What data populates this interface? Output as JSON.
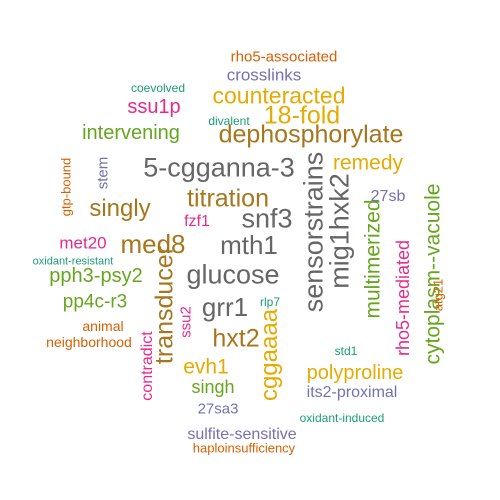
{
  "colors": {
    "green": "#1b9e77",
    "orange": "#d95f02",
    "purple": "#7570b3",
    "magenta": "#e7298a",
    "lime": "#66a61e",
    "gold": "#e6ab02",
    "brown": "#a6761d",
    "grey": "#666666"
  },
  "words": [
    {
      "text": "rho5-associated",
      "color": "orange",
      "weight": 1.2,
      "vertical": false
    },
    {
      "text": "crosslinks",
      "color": "purple",
      "weight": 1.5,
      "vertical": false
    },
    {
      "text": "coevolved",
      "color": "green",
      "weight": 1.0,
      "vertical": false
    },
    {
      "text": "counteracted",
      "color": "gold",
      "weight": 2.4,
      "vertical": false
    },
    {
      "text": "ssu1p",
      "color": "magenta",
      "weight": 2.0,
      "vertical": false
    },
    {
      "text": "18-fold",
      "color": "gold",
      "weight": 2.8,
      "vertical": false
    },
    {
      "text": "divalent",
      "color": "green",
      "weight": 1.0,
      "vertical": false
    },
    {
      "text": "intervening",
      "color": "lime",
      "weight": 2.0,
      "vertical": false
    },
    {
      "text": "dephosphorylate",
      "color": "brown",
      "weight": 2.8,
      "vertical": false
    },
    {
      "text": "remedy",
      "color": "gold",
      "weight": 2.2,
      "vertical": false
    },
    {
      "text": "stem",
      "color": "purple",
      "weight": 1.3,
      "vertical": true
    },
    {
      "text": "gtp-bound",
      "color": "orange",
      "weight": 1.1,
      "vertical": true
    },
    {
      "text": "5-cgganna-3",
      "color": "grey",
      "weight": 3.0,
      "vertical": false
    },
    {
      "text": "sensorstrains",
      "color": "grey",
      "weight": 3.0,
      "vertical": true
    },
    {
      "text": "mig1hxk2",
      "color": "grey",
      "weight": 3.0,
      "vertical": true
    },
    {
      "text": "27sb",
      "color": "purple",
      "weight": 1.5,
      "vertical": false
    },
    {
      "text": "titration",
      "color": "brown",
      "weight": 2.8,
      "vertical": false
    },
    {
      "text": "singly",
      "color": "brown",
      "weight": 2.5,
      "vertical": false
    },
    {
      "text": "snf3",
      "color": "grey",
      "weight": 3.0,
      "vertical": false
    },
    {
      "text": "fzf1",
      "color": "magenta",
      "weight": 1.6,
      "vertical": false
    },
    {
      "text": "multimerized",
      "color": "lime",
      "weight": 2.0,
      "vertical": true
    },
    {
      "text": "cytoplasm--vacuole",
      "color": "lime",
      "weight": 2.0,
      "vertical": true
    },
    {
      "text": "med8",
      "color": "brown",
      "weight": 2.8,
      "vertical": false
    },
    {
      "text": "mth1",
      "color": "grey",
      "weight": 3.0,
      "vertical": false
    },
    {
      "text": "met20",
      "color": "magenta",
      "weight": 1.6,
      "vertical": false
    },
    {
      "text": "rho5-mediated",
      "color": "magenta",
      "weight": 1.6,
      "vertical": true
    },
    {
      "text": "oxidant-resistant",
      "color": "green",
      "weight": 1.0,
      "vertical": false
    },
    {
      "text": "atg21",
      "color": "orange",
      "weight": 1.0,
      "vertical": true
    },
    {
      "text": "glucose",
      "color": "grey",
      "weight": 3.0,
      "vertical": false
    },
    {
      "text": "pph3-psy2",
      "color": "lime",
      "weight": 2.0,
      "vertical": false
    },
    {
      "text": "transducer",
      "color": "brown",
      "weight": 2.8,
      "vertical": true
    },
    {
      "text": "pp4c-r3",
      "color": "lime",
      "weight": 2.0,
      "vertical": false
    },
    {
      "text": "grr1",
      "color": "grey",
      "weight": 3.0,
      "vertical": false
    },
    {
      "text": "ssu2",
      "color": "magenta",
      "weight": 1.6,
      "vertical": true
    },
    {
      "text": "rlp7",
      "color": "green",
      "weight": 1.0,
      "vertical": false
    },
    {
      "text": "animal",
      "color": "orange",
      "weight": 1.2,
      "vertical": false
    },
    {
      "text": "neighborhood",
      "color": "orange",
      "weight": 1.2,
      "vertical": false
    },
    {
      "text": "hxt2",
      "color": "brown",
      "weight": 2.8,
      "vertical": false
    },
    {
      "text": "cggaaaa",
      "color": "gold",
      "weight": 2.4,
      "vertical": true
    },
    {
      "text": "contradict",
      "color": "magenta",
      "weight": 1.6,
      "vertical": true
    },
    {
      "text": "std1",
      "color": "green",
      "weight": 1.0,
      "vertical": false
    },
    {
      "text": "evh1",
      "color": "gold",
      "weight": 2.2,
      "vertical": false
    },
    {
      "text": "polyproline",
      "color": "gold",
      "weight": 2.2,
      "vertical": false
    },
    {
      "text": "singh",
      "color": "lime",
      "weight": 1.8,
      "vertical": false
    },
    {
      "text": "its2-proximal",
      "color": "purple",
      "weight": 1.4,
      "vertical": false
    },
    {
      "text": "27sa3",
      "color": "purple",
      "weight": 1.4,
      "vertical": false
    },
    {
      "text": "oxidant-induced",
      "color": "green",
      "weight": 1.0,
      "vertical": false
    },
    {
      "text": "sulfite-sensitive",
      "color": "purple",
      "weight": 1.5,
      "vertical": false
    },
    {
      "text": "haploinsufficiency",
      "color": "orange",
      "weight": 1.2,
      "vertical": false
    }
  ]
}
